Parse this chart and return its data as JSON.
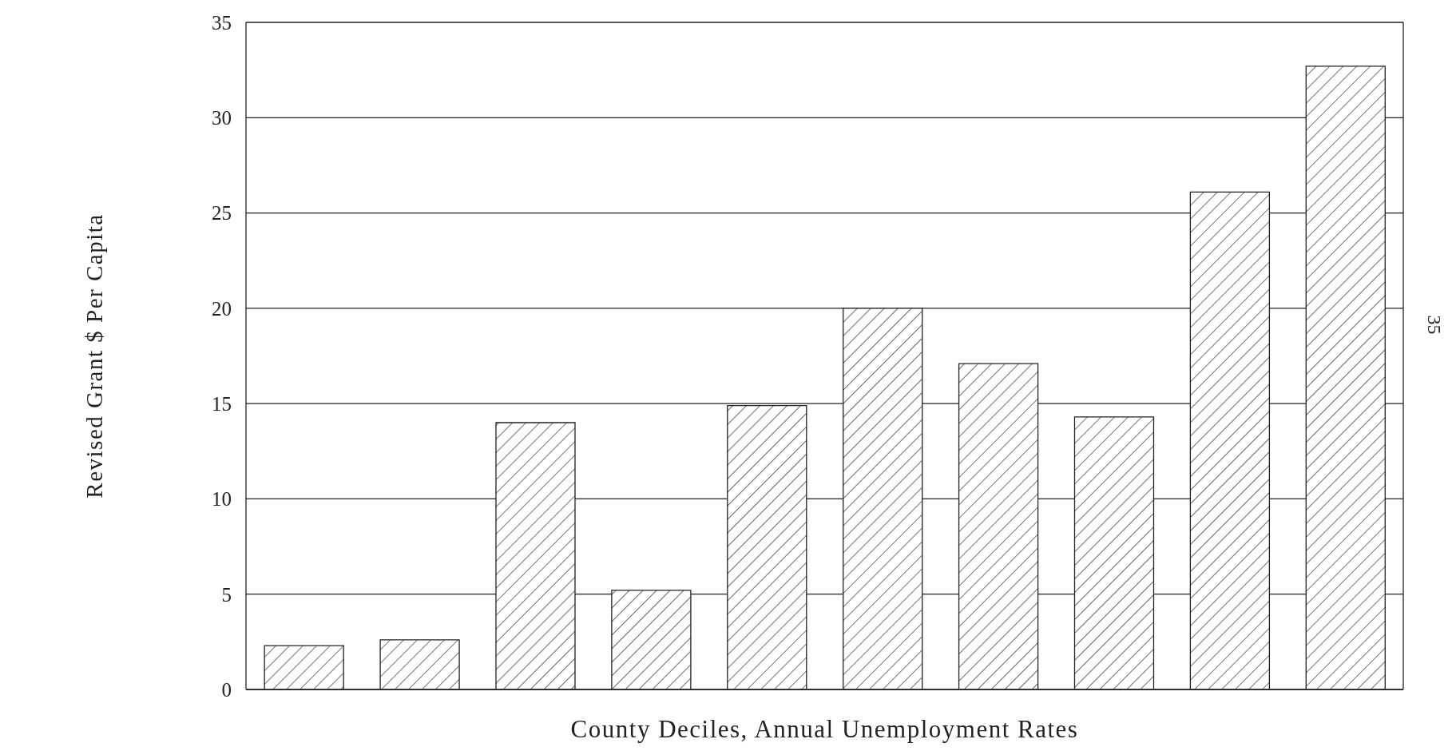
{
  "chart_data": {
    "type": "bar",
    "xlabel": "County Deciles, Annual Unemployment Rates",
    "ylabel": "Revised Grant $ Per Capita",
    "categories": [
      null,
      null,
      null,
      null,
      null,
      null,
      null,
      null,
      null,
      null
    ],
    "values": [
      2.3,
      2.6,
      14,
      5.2,
      14.9,
      20,
      17.1,
      14.3,
      26.1,
      32.7
    ],
    "color": "#222222",
    "ylim": [
      0,
      35
    ],
    "yticks": [
      0,
      5,
      10,
      15,
      20,
      25,
      30,
      35
    ],
    "grid": "y",
    "annotations": [
      "35"
    ]
  }
}
